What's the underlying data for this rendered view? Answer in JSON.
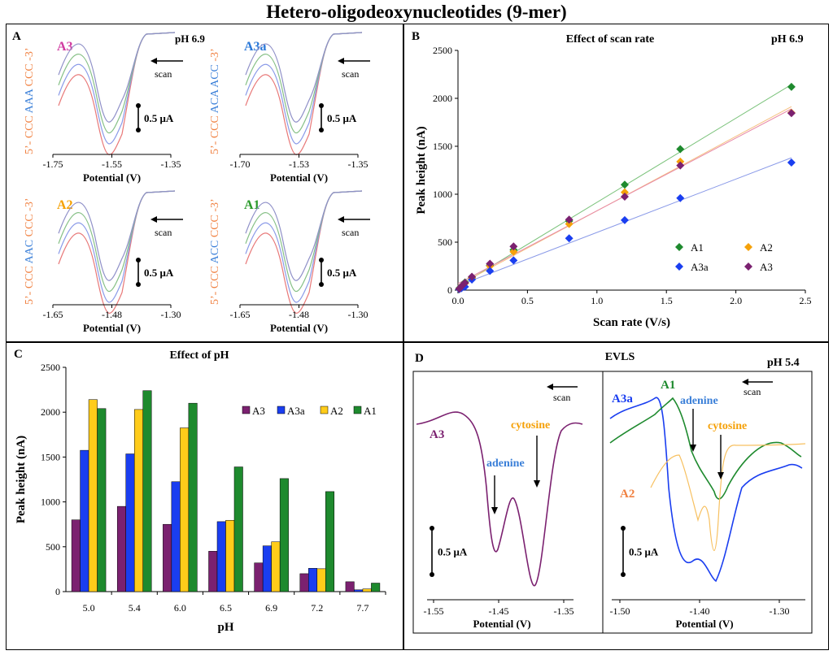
{
  "title": "Hetero-oligodeoxynucleotides (9-mer)",
  "colors": {
    "A1": "#1e8a2e",
    "A2": "#f5a10a",
    "A3": "#7b2170",
    "A3a": "#1a3ef0",
    "A3_label": "#d03aa0",
    "A3a_label": "#2a78d8",
    "A2_label": "#f5a000",
    "A1_label": "#2a9a2a",
    "seq_orange": "#f08040",
    "seq_blue": "#3a7fd8"
  },
  "panelA": {
    "letter": "A",
    "scan_label": "scan",
    "scale_label": "0.5 μA",
    "xlabel": "Potential (V)",
    "subpanels": [
      {
        "name": "A3",
        "ph": "pH 6.9",
        "seq": [
          "5’- CCC ",
          "AAA",
          " CCC -3’"
        ],
        "ticks": [
          "-1.75",
          "-1.55",
          "-1.35"
        ]
      },
      {
        "name": "A3a",
        "ph": "",
        "seq": [
          "5’- CCC ",
          "ACA ACC",
          " -3’"
        ],
        "ticks": [
          "-1.70",
          "-1.53",
          "-1.35"
        ]
      },
      {
        "name": "A2",
        "ph": "",
        "seq": [
          "5’- CCC ",
          "AAC",
          " CCC -3’"
        ],
        "ticks": [
          "-1.65",
          "-1.48",
          "-1.30"
        ]
      },
      {
        "name": "A1",
        "ph": "",
        "seq": [
          "5’- CCC ",
          "ACC",
          " CCC -3’"
        ],
        "ticks": [
          "-1.65",
          "-1.48",
          "-1.30"
        ]
      }
    ]
  },
  "panelB": {
    "letter": "B",
    "title": "Effect of scan rate",
    "ph": "pH 6.9"
  },
  "panelC": {
    "letter": "C",
    "title": "Effect of pH"
  },
  "panelD": {
    "letter": "D",
    "title": "EVLS",
    "ph": "pH 5.4",
    "scan_label": "scan",
    "scale_label": "0.5 μA",
    "xlabel": "Potential (V)",
    "left": {
      "series": "A3",
      "adenine": "adenine",
      "cytosine": "cytosine",
      "ticks": [
        "-1.55",
        "-1.45",
        "-1.35"
      ]
    },
    "right": {
      "series_a3a": "A3a",
      "series_a1": "A1",
      "series_a2": "A2",
      "adenine": "adenine",
      "cytosine": "cytosine",
      "ticks": [
        "-1.50",
        "-1.40",
        "-1.30"
      ]
    }
  },
  "chart_data": [
    {
      "type": "line",
      "panel": "A",
      "title": "",
      "xlabel": "Potential (V)",
      "ylabel": "",
      "note": "cyclic voltammograms at several scan rates for A3, A3a, A2, A1 (pH 6.9)"
    },
    {
      "type": "scatter",
      "panel": "B",
      "title": "Effect of scan rate",
      "xlabel": "Scan rate (V/s)",
      "ylabel": "Peak height (nA)",
      "xlim": [
        0,
        2.5
      ],
      "ylim": [
        0,
        2500
      ],
      "xticks": [
        "0.0",
        "0.5",
        "1.0",
        "1.5",
        "2.0",
        "2.5"
      ],
      "yticks": [
        "0",
        "500",
        "1000",
        "1500",
        "2000",
        "2500"
      ],
      "legend": "bottom-right",
      "series": [
        {
          "name": "A1",
          "x": [
            0.01,
            0.025,
            0.05,
            0.1,
            0.23,
            0.4,
            0.8,
            1.2,
            1.6,
            2.4
          ],
          "y": [
            20,
            40,
            80,
            130,
            260,
            420,
            720,
            1100,
            1470,
            2120
          ]
        },
        {
          "name": "A2",
          "x": [
            0.01,
            0.025,
            0.05,
            0.1,
            0.23,
            0.4,
            0.8,
            1.2,
            1.6,
            2.4
          ],
          "y": [
            15,
            35,
            70,
            125,
            250,
            400,
            690,
            1020,
            1340,
            1850
          ]
        },
        {
          "name": "A3a",
          "x": [
            0.01,
            0.025,
            0.05,
            0.1,
            0.23,
            0.4,
            0.8,
            1.2,
            1.6,
            2.4
          ],
          "y": [
            10,
            20,
            35,
            110,
            200,
            310,
            540,
            730,
            960,
            1330
          ]
        },
        {
          "name": "A3",
          "x": [
            0.01,
            0.025,
            0.05,
            0.1,
            0.23,
            0.4,
            0.8,
            1.2,
            1.6,
            2.4
          ],
          "y": [
            15,
            40,
            75,
            140,
            275,
            455,
            735,
            975,
            1300,
            1845
          ]
        }
      ]
    },
    {
      "type": "bar",
      "panel": "C",
      "title": "Effect of pH",
      "xlabel": "pH",
      "ylabel": "Peak height (nA)",
      "ylim": [
        0,
        2500
      ],
      "categories": [
        "5.0",
        "5.4",
        "6.0",
        "6.5",
        "6.9",
        "7.2",
        "7.7"
      ],
      "yticks": [
        "0",
        "500",
        "1000",
        "1500",
        "2000",
        "2500"
      ],
      "legend": "top-right",
      "series": [
        {
          "name": "A3",
          "values": [
            800,
            950,
            750,
            450,
            320,
            200,
            110
          ]
        },
        {
          "name": "A3a",
          "values": [
            1575,
            1535,
            1225,
            780,
            510,
            260,
            20
          ]
        },
        {
          "name": "A2",
          "values": [
            2140,
            2030,
            1825,
            795,
            555,
            255,
            30
          ]
        },
        {
          "name": "A1",
          "values": [
            2040,
            2240,
            2100,
            1390,
            1260,
            1115,
            95
          ]
        }
      ]
    },
    {
      "type": "line",
      "panel": "D",
      "title": "EVLS",
      "xlabel": "Potential (V)",
      "ylabel": "",
      "note": "elimination voltammograms of A3 (left) and A3a, A1, A2 (right) at pH 5.4"
    }
  ]
}
